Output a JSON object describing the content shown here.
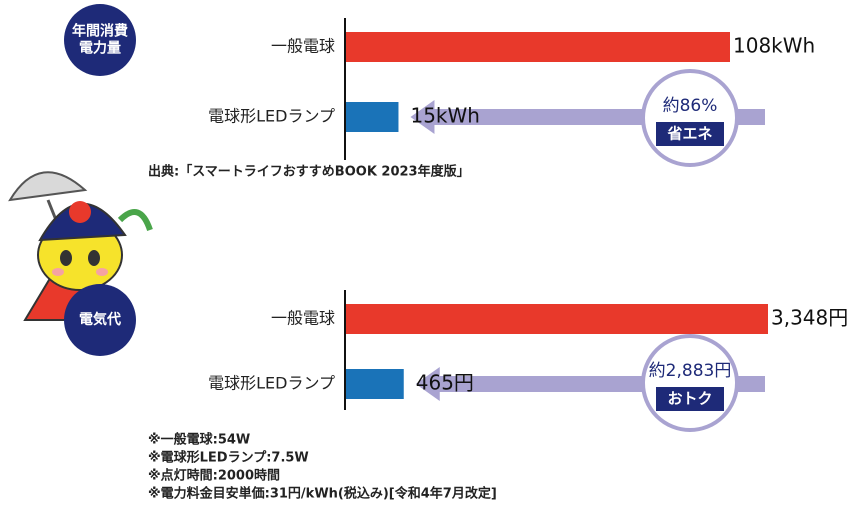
{
  "chart_data": [
    {
      "type": "hbar",
      "title": [
        "年間消費",
        "電力量"
      ],
      "categories": [
        "一般電球",
        "電球形LEDランプ"
      ],
      "values": [
        108,
        15
      ],
      "value_labels": [
        "108kWh",
        "15kWh"
      ],
      "colors": [
        "#e8392b",
        "#1a73b8"
      ],
      "annotation": [
        "約86%",
        "省エネ"
      ]
    },
    {
      "type": "hbar",
      "title": [
        "電気代"
      ],
      "categories": [
        "一般電球",
        "電球形LEDランプ"
      ],
      "values": [
        3348,
        465
      ],
      "value_labels": [
        "3,348円",
        "465円"
      ],
      "colors": [
        "#e8392b",
        "#1a73b8"
      ],
      "annotation": [
        "約2,883円",
        "おトク"
      ]
    }
  ],
  "source": "出典:「スマートライフおすすめBOOK 2023年度版」",
  "notes": [
    "※一般電球:54W",
    "※電球形LEDランプ:7.5W",
    "※点灯時間:2000時間",
    "※電力料金目安単価:31円/kWh(税込み)[令和4年7月改定]"
  ]
}
